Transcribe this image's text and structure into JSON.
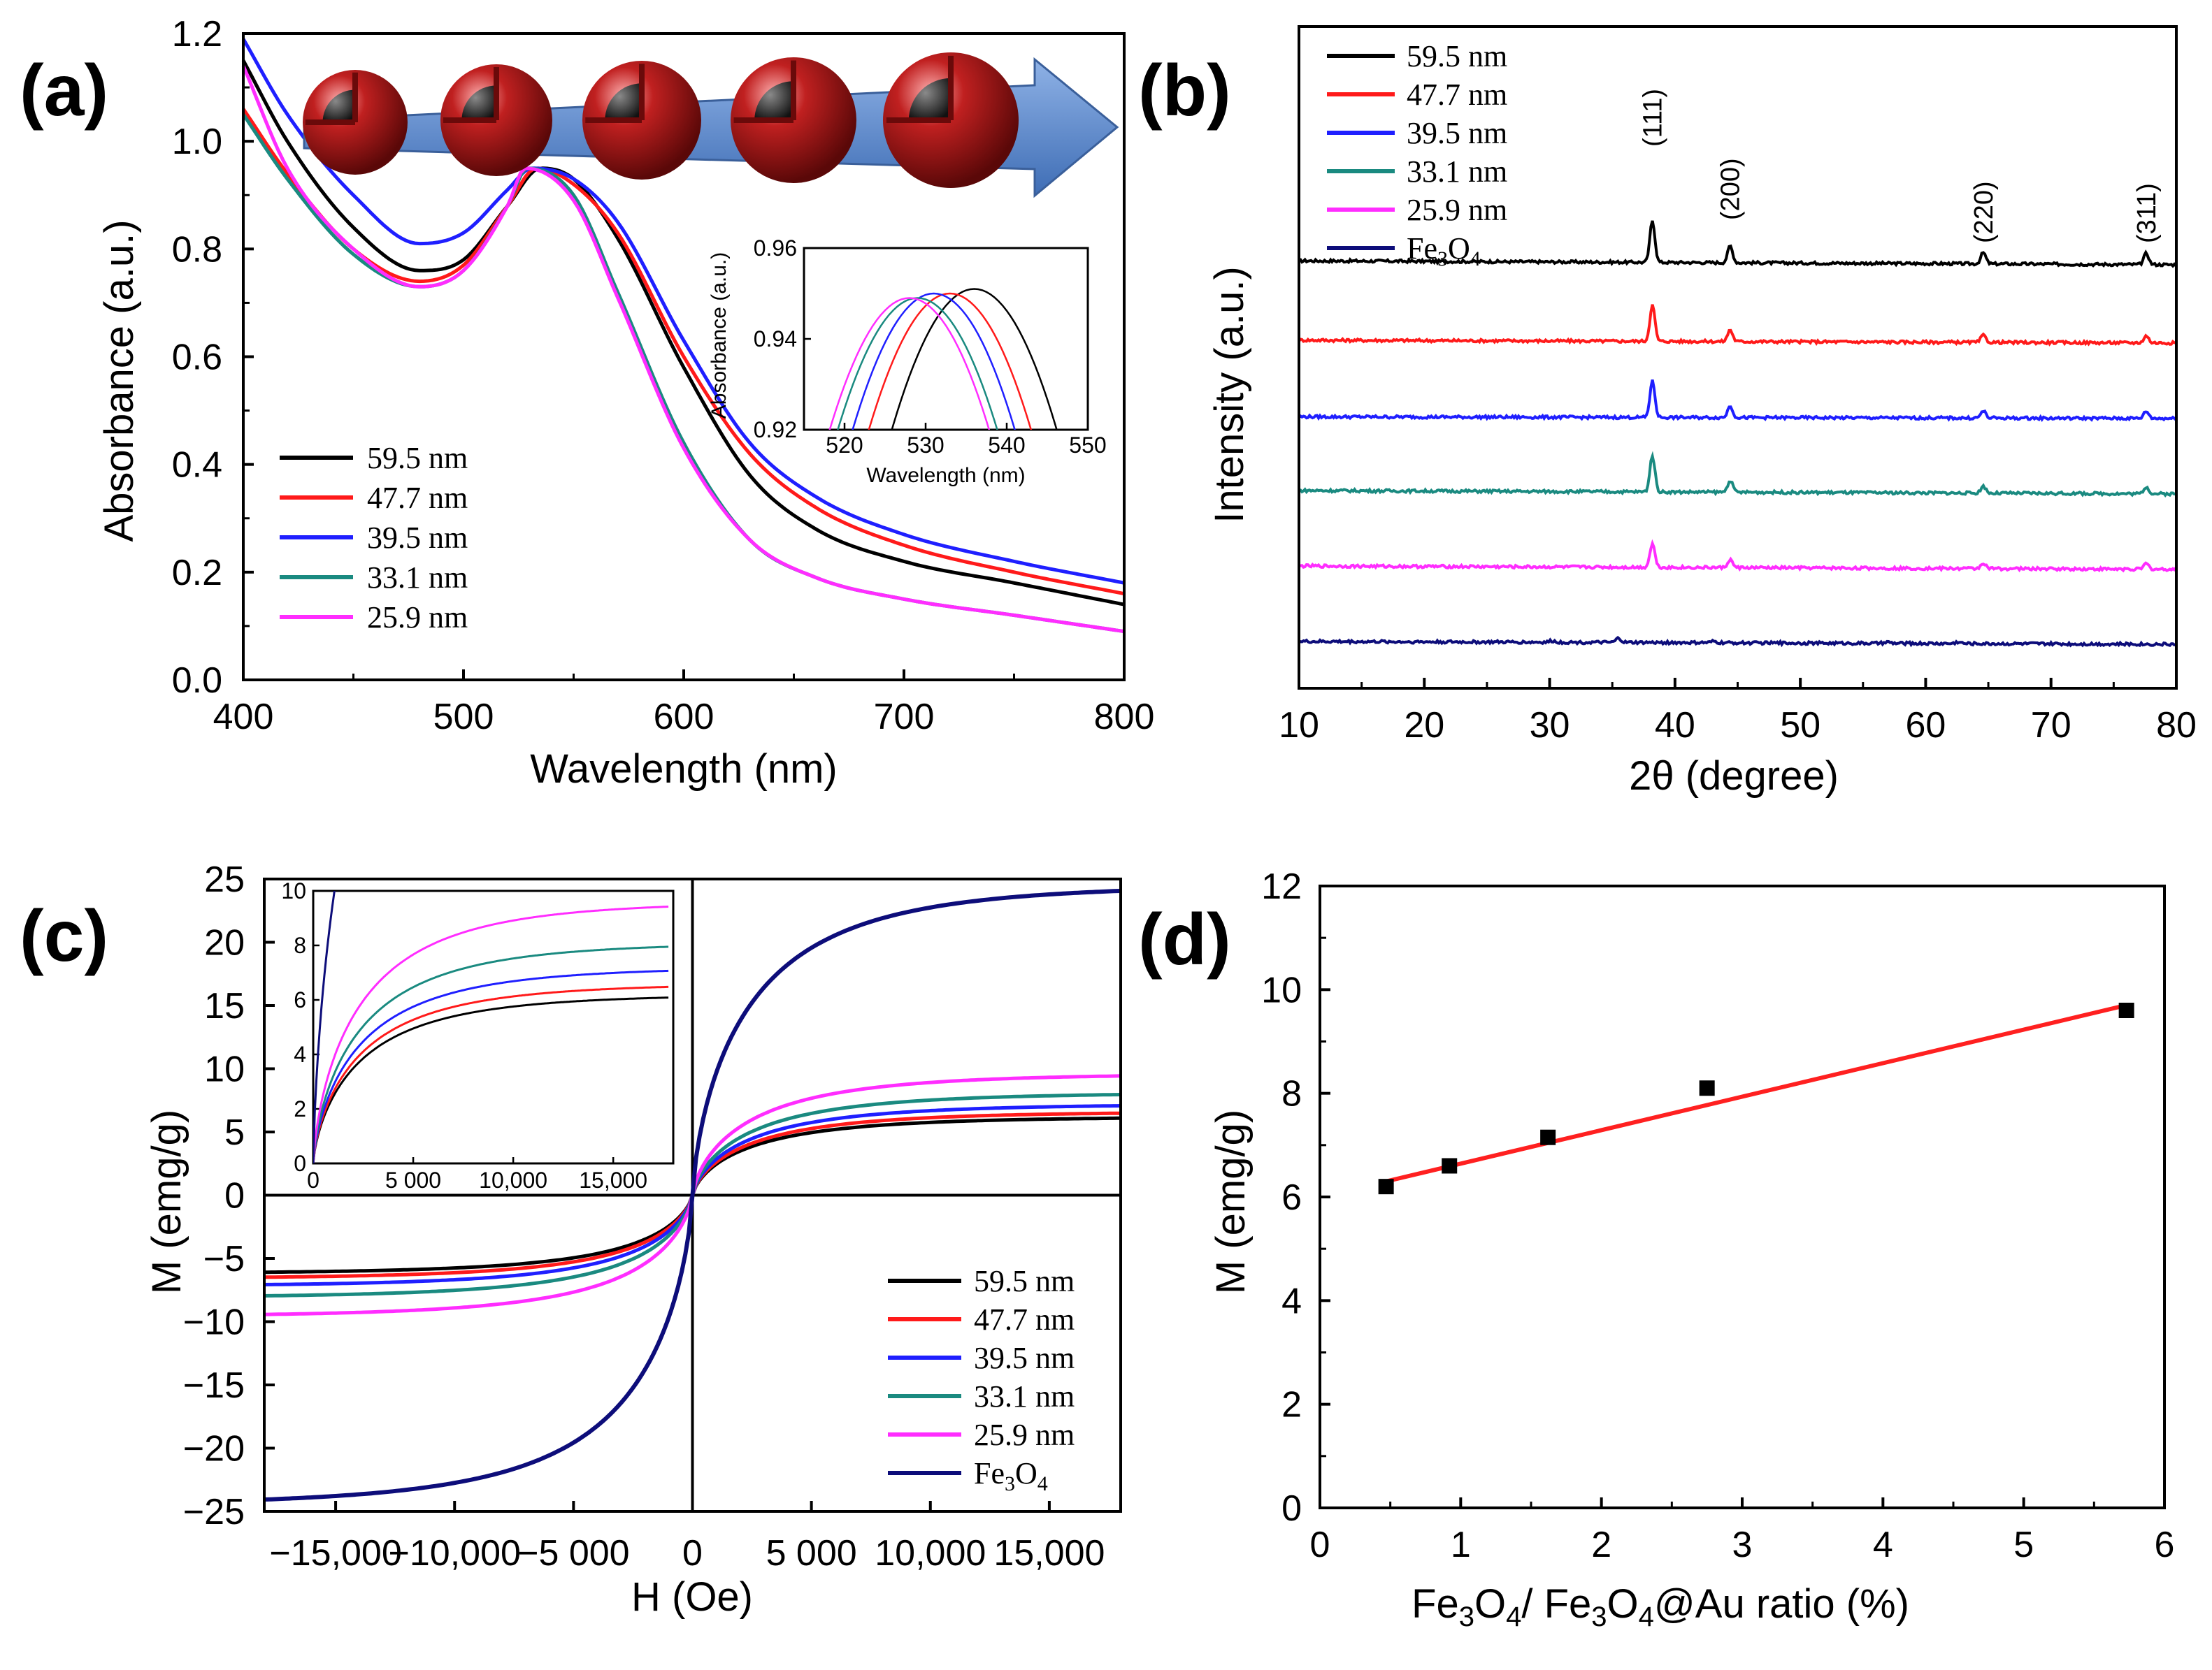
{
  "panel_labels": [
    "(a)",
    "(b)",
    "(c)",
    "(d)"
  ],
  "colors": {
    "59.5 nm": "#000000",
    "47.7 nm": "#ff1a1a",
    "39.5 nm": "#1f1fff",
    "33.1 nm": "#1a8a80",
    "25.9 nm": "#ff2dff",
    "Fe3O4": "#0d0d7a",
    "fit": "#ff2020",
    "arrow": "#5b86c8",
    "sphere": "#a51c1c"
  },
  "chart_data": [
    {
      "panel": "(a)",
      "type": "line",
      "xlabel": "Wavelength (nm)",
      "ylabel": "Absorbance (a.u.)",
      "xlim": [
        400,
        800
      ],
      "ylim": [
        0.0,
        1.2
      ],
      "xticks": [
        "400",
        "500",
        "600",
        "700",
        "800"
      ],
      "yticks": [
        "0.0",
        "0.2",
        "0.4",
        "0.6",
        "0.8",
        "1.0",
        "1.2"
      ],
      "legend": [
        "59.5 nm",
        "47.7 nm",
        "39.5 nm",
        "33.1 nm",
        "25.9 nm"
      ],
      "legend_position": "bottom-left",
      "series": [
        {
          "name": "59.5 nm",
          "x": [
            400,
            420,
            450,
            480,
            500,
            520,
            535,
            550,
            570,
            600,
            630,
            660,
            700,
            750,
            800
          ],
          "y": [
            1.15,
            1.0,
            0.84,
            0.76,
            0.78,
            0.88,
            0.95,
            0.93,
            0.82,
            0.58,
            0.38,
            0.28,
            0.22,
            0.18,
            0.14
          ]
        },
        {
          "name": "47.7 nm",
          "x": [
            400,
            420,
            450,
            480,
            500,
            520,
            533,
            550,
            570,
            600,
            630,
            660,
            700,
            750,
            800
          ],
          "y": [
            1.06,
            0.94,
            0.8,
            0.74,
            0.77,
            0.88,
            0.95,
            0.92,
            0.83,
            0.6,
            0.42,
            0.32,
            0.25,
            0.2,
            0.16
          ]
        },
        {
          "name": "39.5 nm",
          "x": [
            400,
            420,
            450,
            480,
            500,
            520,
            531,
            550,
            570,
            600,
            630,
            660,
            700,
            750,
            800
          ],
          "y": [
            1.19,
            1.05,
            0.9,
            0.81,
            0.83,
            0.91,
            0.95,
            0.93,
            0.85,
            0.63,
            0.44,
            0.34,
            0.27,
            0.22,
            0.18
          ]
        },
        {
          "name": "33.1 nm",
          "x": [
            400,
            420,
            450,
            480,
            500,
            520,
            529,
            550,
            570,
            600,
            630,
            660,
            700,
            750,
            800
          ],
          "y": [
            1.05,
            0.93,
            0.79,
            0.73,
            0.76,
            0.88,
            0.95,
            0.9,
            0.72,
            0.44,
            0.26,
            0.19,
            0.15,
            0.12,
            0.09
          ]
        },
        {
          "name": "25.9 nm",
          "x": [
            400,
            420,
            450,
            480,
            500,
            520,
            528,
            550,
            570,
            600,
            630,
            660,
            700,
            750,
            800
          ],
          "y": [
            1.14,
            0.95,
            0.8,
            0.73,
            0.76,
            0.88,
            0.95,
            0.89,
            0.71,
            0.43,
            0.26,
            0.19,
            0.15,
            0.12,
            0.09
          ]
        }
      ],
      "inset": {
        "xlabel": "Wavelength (nm)",
        "ylabel": "Absorbance (a.u.)",
        "xlim": [
          515,
          550
        ],
        "ylim": [
          0.92,
          0.96
        ],
        "xticks": [
          "520",
          "530",
          "540",
          "550"
        ],
        "yticks": [
          "0.92",
          "0.94",
          "0.96"
        ],
        "peaks": [
          {
            "name": "59.5 nm",
            "center": 536,
            "peak": 0.951
          },
          {
            "name": "47.7 nm",
            "center": 533,
            "peak": 0.95
          },
          {
            "name": "39.5 nm",
            "center": 531,
            "peak": 0.95
          },
          {
            "name": "33.1 nm",
            "center": 529,
            "peak": 0.949
          },
          {
            "name": "25.9 nm",
            "center": 528,
            "peak": 0.949
          }
        ]
      }
    },
    {
      "panel": "(b)",
      "type": "line",
      "xlabel": "2θ (degree)",
      "ylabel": "Intensity (a.u.)",
      "xlim": [
        10,
        80
      ],
      "xticks": [
        "10",
        "20",
        "30",
        "40",
        "50",
        "60",
        "70",
        "80"
      ],
      "legend": [
        "59.5 nm",
        "47.7 nm",
        "39.5 nm",
        "33.1 nm",
        "25.9 nm",
        "Fe3O4"
      ],
      "legend_position": "top-left",
      "peak_labels": [
        {
          "label": "(111)",
          "x": 38.2
        },
        {
          "label": "(200)",
          "x": 44.4
        },
        {
          "label": "(220)",
          "x": 64.6
        },
        {
          "label": "(311)",
          "x": 77.6
        }
      ],
      "series": [
        {
          "name": "59.5 nm",
          "offset": 5,
          "baseline": [
            0.62,
            0.48
          ],
          "peaks": [
            [
              38.2,
              1.5
            ],
            [
              44.4,
              0.6
            ],
            [
              64.6,
              0.4
            ],
            [
              77.6,
              0.4
            ]
          ]
        },
        {
          "name": "47.7 nm",
          "offset": 4,
          "baseline": [
            0.48,
            0.38
          ],
          "peaks": [
            [
              38.2,
              1.3
            ],
            [
              44.4,
              0.42
            ],
            [
              64.6,
              0.25
            ],
            [
              77.6,
              0.25
            ]
          ]
        },
        {
          "name": "39.5 nm",
          "offset": 3,
          "baseline": [
            0.44,
            0.38
          ],
          "peaks": [
            [
              38.2,
              1.3
            ],
            [
              44.4,
              0.42
            ],
            [
              64.6,
              0.25
            ],
            [
              77.6,
              0.25
            ]
          ]
        },
        {
          "name": "33.1 nm",
          "offset": 2,
          "baseline": [
            0.5,
            0.38
          ],
          "peaks": [
            [
              38.2,
              1.3
            ],
            [
              44.4,
              0.42
            ],
            [
              64.6,
              0.25
            ],
            [
              77.6,
              0.25
            ]
          ]
        },
        {
          "name": "25.9 nm",
          "offset": 1,
          "baseline": [
            0.5,
            0.38
          ],
          "peaks": [
            [
              38.2,
              0.85
            ],
            [
              44.4,
              0.28
            ],
            [
              64.6,
              0.2
            ],
            [
              77.6,
              0.2
            ]
          ]
        },
        {
          "name": "Fe3O4",
          "offset": 0,
          "baseline": [
            0.5,
            0.4
          ],
          "peaks": [
            [
              30.2,
              0.05
            ],
            [
              35.5,
              0.15
            ],
            [
              43.1,
              0.05
            ],
            [
              57.0,
              0.04
            ],
            [
              62.6,
              0.06
            ]
          ]
        }
      ]
    },
    {
      "panel": "(c)",
      "type": "line",
      "xlabel": "H (Oe)",
      "ylabel": "M (emg/g)",
      "xlim": [
        -18000,
        18000
      ],
      "ylim": [
        -25,
        25
      ],
      "xticks": [
        "−15,000",
        "−10,000",
        "−5 000",
        "0",
        "5 000",
        "10,000",
        "15,000"
      ],
      "yticks": [
        "−25",
        "−20",
        "−15",
        "−10",
        "−5",
        "0",
        "5",
        "10",
        "15",
        "20",
        "25"
      ],
      "legend": [
        "59.5 nm",
        "47.7 nm",
        "39.5 nm",
        "33.1 nm",
        "25.9 nm",
        "Fe3O4"
      ],
      "legend_position": "bottom-right",
      "series": [
        {
          "name": "59.5 nm",
          "Ms": 6.2
        },
        {
          "name": "47.7 nm",
          "Ms": 6.6
        },
        {
          "name": "39.5 nm",
          "Ms": 7.2
        },
        {
          "name": "33.1 nm",
          "Ms": 8.1
        },
        {
          "name": "25.9 nm",
          "Ms": 9.6
        },
        {
          "name": "Fe3O4",
          "Ms": 24.5
        }
      ],
      "inset": {
        "xlim": [
          0,
          18000
        ],
        "ylim": [
          0,
          10
        ],
        "xticks": [
          "0",
          "5 000",
          "10,000",
          "15,000"
        ],
        "yticks": [
          "0",
          "2",
          "4",
          "6",
          "8",
          "10"
        ]
      }
    },
    {
      "panel": "(d)",
      "type": "scatter",
      "xlabel": "Fe3O4/ Fe3O4@Au ratio (%)",
      "ylabel": "M (emg/g)",
      "xlim": [
        0,
        6
      ],
      "ylim": [
        0,
        12
      ],
      "xticks": [
        "0",
        "1",
        "2",
        "3",
        "4",
        "5",
        "6"
      ],
      "yticks": [
        "0",
        "2",
        "4",
        "6",
        "8",
        "10",
        "12"
      ],
      "x": [
        0.47,
        0.92,
        1.62,
        2.75,
        5.73
      ],
      "y": [
        6.2,
        6.6,
        7.15,
        8.1,
        9.6
      ],
      "fit": {
        "x": [
          0.47,
          5.73
        ],
        "y": [
          6.3,
          9.7
        ]
      }
    }
  ]
}
